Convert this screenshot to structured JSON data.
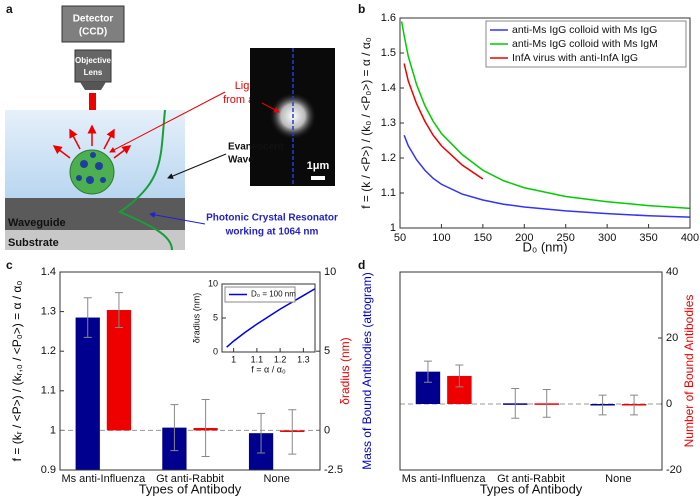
{
  "diagram": {
    "label": "a",
    "detector": [
      "Detector",
      "(CCD)"
    ],
    "lens": [
      "Objective",
      "Lens"
    ],
    "scattering": [
      "Light scattering",
      "from a trapped virus"
    ],
    "wave": [
      "Evanescent",
      "Wave"
    ],
    "resonator": [
      "Photonic Crystal Resonator",
      "working at 1064 nm"
    ],
    "waveguide": "Waveguide",
    "substrate": "Substrate",
    "scale_bar": "1μm"
  },
  "chart_data": [
    {
      "type": "line",
      "label": "b",
      "xlabel": "D₀ (nm)",
      "ylabel": "f = (k / <P>) / (k₀ / <P₀>) = α / α₀",
      "x": [
        52,
        55,
        60,
        70,
        80,
        90,
        100,
        125,
        150,
        175,
        200,
        250,
        300,
        350,
        400
      ],
      "series": [
        {
          "name": "anti-Ms IgG colloid with Ms IgG",
          "color": "#3333ff",
          "values": [
            null,
            1.265,
            1.235,
            1.195,
            1.165,
            1.142,
            1.125,
            1.097,
            1.08,
            1.068,
            1.06,
            1.049,
            1.041,
            1.035,
            1.031
          ]
        },
        {
          "name": "anti-Ms IgG colloid with Ms IgM",
          "color": "#00cc00",
          "values": [
            1.59,
            1.55,
            1.49,
            1.41,
            1.35,
            1.305,
            1.27,
            1.21,
            1.165,
            1.135,
            1.115,
            1.09,
            1.075,
            1.064,
            1.056
          ]
        },
        {
          "name": "InfA virus with anti-InfA IgG",
          "color": "#ee0000",
          "values": [
            null,
            1.47,
            1.42,
            1.355,
            1.305,
            1.265,
            1.235,
            1.18,
            1.14,
            null,
            null,
            null,
            null,
            null,
            null
          ]
        }
      ],
      "xlim": [
        50,
        400
      ],
      "xticks": [
        50,
        100,
        150,
        200,
        250,
        300,
        350,
        400
      ],
      "ylim": [
        1,
        1.6
      ],
      "yticks": [
        1,
        1.1,
        1.2,
        1.3,
        1.4,
        1.5,
        1.6
      ],
      "legend": "upper right"
    },
    {
      "type": "bar",
      "label": "c",
      "xlabel": "Types of Antibody",
      "ylabel": "f = (kᵣ / <P>) / (kᵣ,₀ / <P₀>) = α / α₀",
      "y2label": "δradius (nm)",
      "ylabel_color": "#000000",
      "y2label_color": "#ee0000",
      "categories": [
        "Ms anti-Influenza",
        "Gt anti-Rabbit",
        "None"
      ],
      "series": [
        {
          "color": "#00008f",
          "axis": "y",
          "values": [
            1.285,
            1.007,
            0.993
          ],
          "errors": [
            0.05,
            0.058,
            0.05
          ]
        },
        {
          "color": "#ee0000",
          "axis": "y2",
          "values": [
            7.6,
            0.15,
            -0.1
          ],
          "errors": [
            1.1,
            1.8,
            1.4
          ]
        }
      ],
      "ylim": [
        0.9,
        1.4
      ],
      "yticks": [
        0.9,
        1,
        1.1,
        1.2,
        1.3,
        1.4
      ],
      "y2lim": [
        -2.5,
        10
      ],
      "y2ticks": [
        -2.5,
        0,
        5,
        10
      ],
      "hline": 1
    },
    {
      "type": "line",
      "xlabel": "f = α / α₀",
      "ylabel": "δradius (nm)",
      "x": [
        0.97,
        1,
        1.05,
        1.1,
        1.15,
        1.2,
        1.25,
        1.3,
        1.35
      ],
      "series": [
        {
          "name": "D₀ = 100 nm",
          "color": "#0000ee",
          "values": [
            0.7,
            1.6,
            2.9,
            4.1,
            5.2,
            6.3,
            7.3,
            8.3,
            9.3
          ]
        }
      ],
      "xlim": [
        0.95,
        1.35
      ],
      "xticks": [
        1,
        1.1,
        1.2,
        1.3
      ],
      "ylim": [
        0,
        10
      ],
      "yticks": [
        0,
        5,
        10
      ],
      "legend": "upper left"
    },
    {
      "type": "bar",
      "label": "d",
      "xlabel": "Types of Antibody",
      "ylabel": "Mass of Bound Antibodies (attogram)",
      "y2label": "Number of Bound Antibodies",
      "ylabel_color": "#0000cc",
      "y2label_color": "#ee0000",
      "categories": [
        "Ms anti-Influenza",
        "Gt anti-Rabbit",
        "None"
      ],
      "series": [
        {
          "color": "#00008f",
          "axis": "y",
          "values": [
            9.8,
            0.2,
            -0.3
          ],
          "errors": [
            3.2,
            4.5,
            3
          ]
        },
        {
          "color": "#ee0000",
          "axis": "y2",
          "values": [
            8.5,
            0.2,
            -0.3
          ],
          "errors": [
            3.3,
            4.2,
            3
          ]
        }
      ],
      "ylim": [
        -20,
        40
      ],
      "y2lim": [
        -20,
        40
      ],
      "y2ticks": [
        -20,
        0,
        20,
        40
      ],
      "hline": 0
    }
  ]
}
